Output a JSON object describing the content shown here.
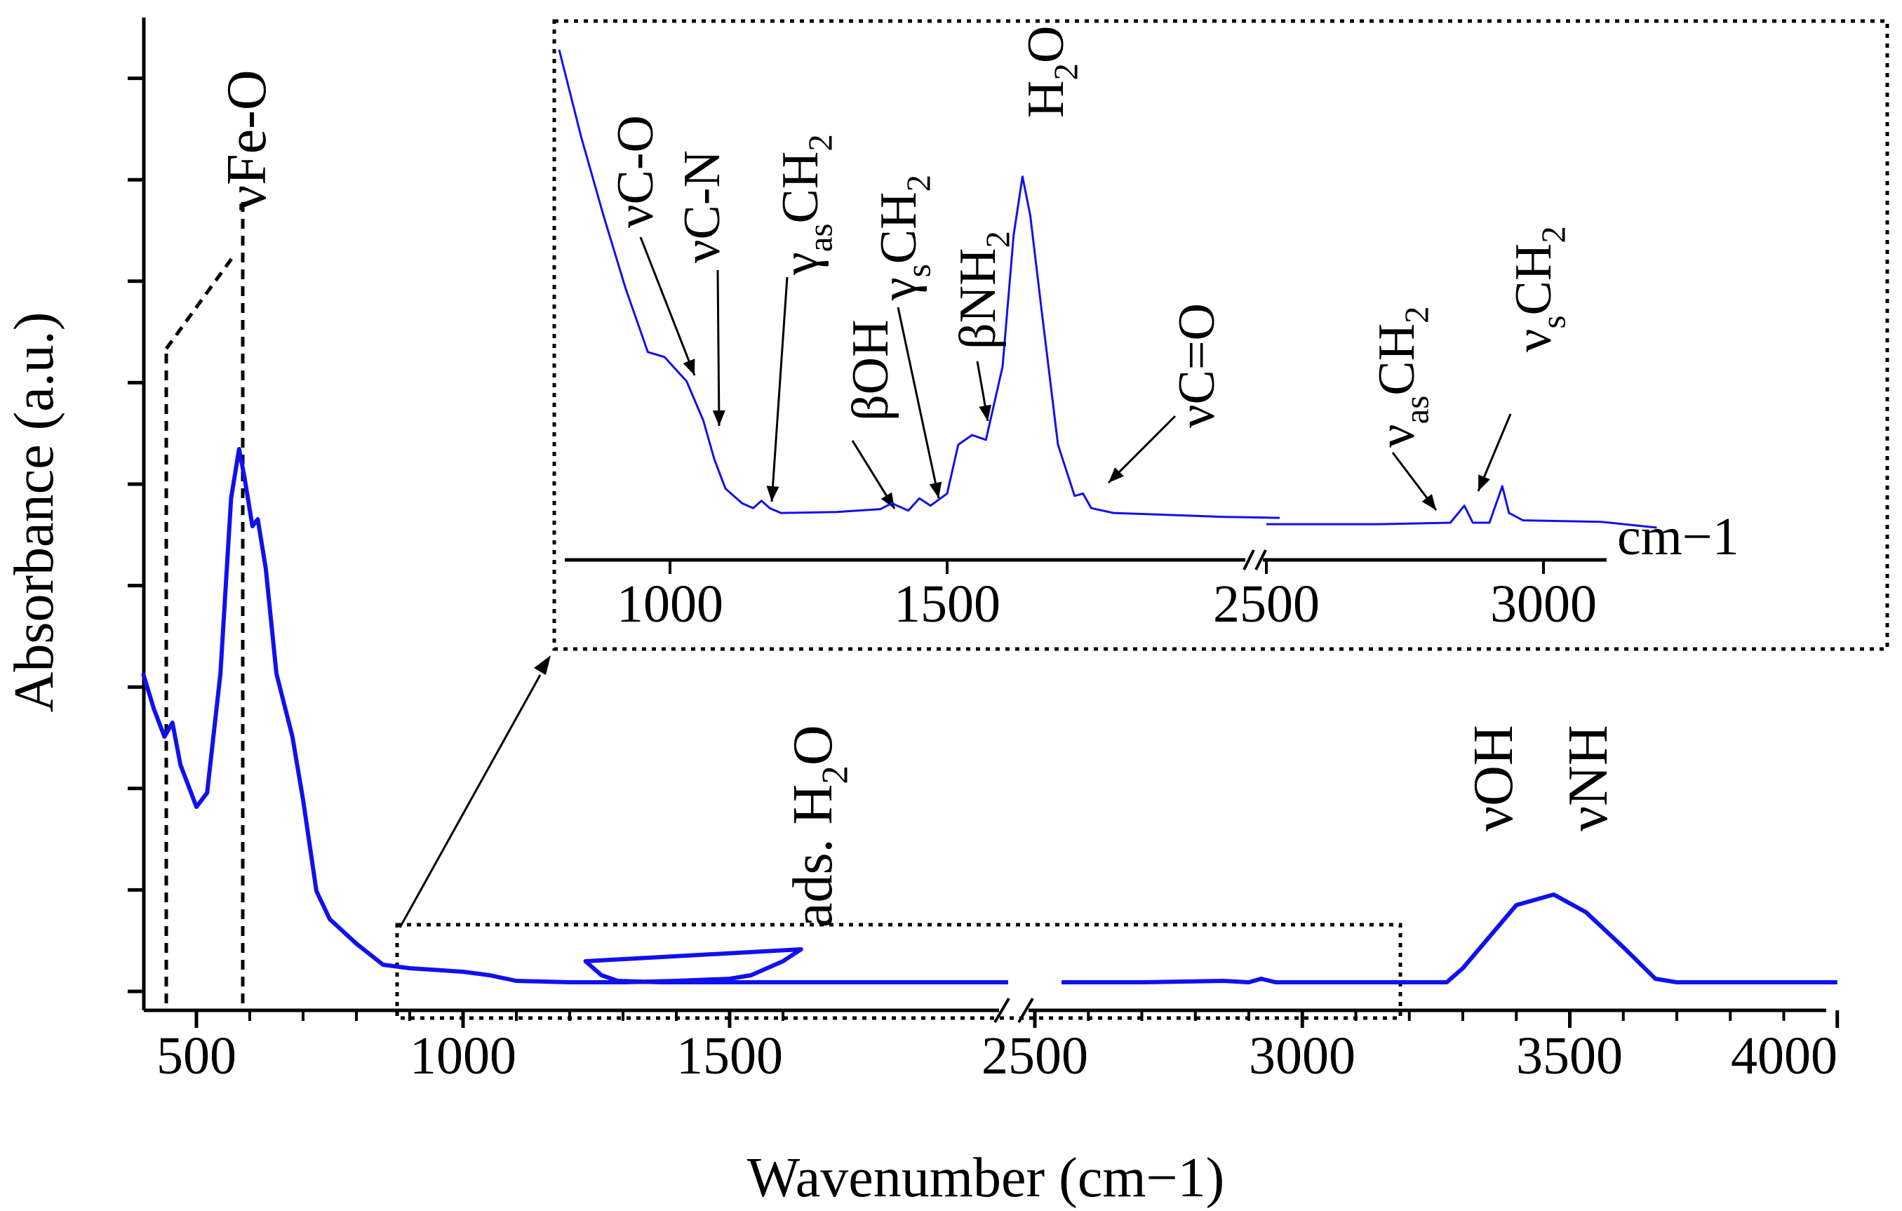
{
  "chart_data": {
    "type": "line",
    "title": "",
    "xlabel": "Wavenumber (cm−1)",
    "ylabel": "Absorbance (a.u.)",
    "x_axis": "broken axis: 400–1650 cm−1, break, 2450–4000 cm−1",
    "y_ticks_labeled": false,
    "series_color": "#1010ee",
    "ticks_main": [
      "500",
      "1000",
      "1500",
      "2500",
      "3000",
      "3500",
      "4000"
    ],
    "ticks_inset": [
      "1000",
      "1500",
      "2500",
      "3000"
    ],
    "inset_unit": "cm−1",
    "series": [
      {
        "points": [
          [
            400,
            0.45
          ],
          [
            420,
            0.4
          ],
          [
            440,
            0.36
          ],
          [
            455,
            0.38
          ],
          [
            470,
            0.32
          ],
          [
            500,
            0.26
          ],
          [
            520,
            0.28
          ],
          [
            545,
            0.45
          ],
          [
            565,
            0.7
          ],
          [
            580,
            0.77
          ],
          [
            590,
            0.73
          ],
          [
            605,
            0.66
          ],
          [
            615,
            0.67
          ],
          [
            630,
            0.6
          ],
          [
            650,
            0.45
          ],
          [
            680,
            0.36
          ],
          [
            700,
            0.27
          ],
          [
            725,
            0.14
          ],
          [
            750,
            0.1
          ],
          [
            800,
            0.065
          ],
          [
            850,
            0.035
          ],
          [
            900,
            0.03
          ],
          [
            1000,
            0.025
          ],
          [
            1050,
            0.02
          ],
          [
            1100,
            0.012
          ],
          [
            1200,
            0.01
          ],
          [
            1300,
            0.01
          ],
          [
            1400,
            0.012
          ],
          [
            1500,
            0.015
          ],
          [
            1540,
            0.02
          ],
          [
            1600,
            0.04
          ],
          [
            1634,
            0.057
          ],
          [
            1660,
            0.04
          ],
          [
            1690,
            0.02
          ],
          [
            1720,
            0.012
          ],
          [
            1800,
            0.01
          ],
          [
            2400,
            0.01
          ],
          [
            2450,
            0.01
          ]
        ]
      },
      {
        "points": [
          [
            2550,
            0.01
          ],
          [
            2700,
            0.01
          ],
          [
            2853,
            0.012
          ],
          [
            2900,
            0.01
          ],
          [
            2923,
            0.015
          ],
          [
            2950,
            0.01
          ],
          [
            3200,
            0.01
          ],
          [
            3270,
            0.01
          ],
          [
            3300,
            0.03
          ],
          [
            3400,
            0.12
          ],
          [
            3470,
            0.135
          ],
          [
            3530,
            0.11
          ],
          [
            3600,
            0.06
          ],
          [
            3660,
            0.015
          ],
          [
            3700,
            0.01
          ],
          [
            3800,
            0.01
          ],
          [
            4000,
            0.01
          ]
        ]
      }
    ],
    "inset_series": [
      {
        "points": [
          [
            800,
            0.98
          ],
          [
            840,
            0.8
          ],
          [
            880,
            0.64
          ],
          [
            920,
            0.49
          ],
          [
            960,
            0.36
          ],
          [
            990,
            0.35
          ],
          [
            1030,
            0.3
          ],
          [
            1060,
            0.22
          ],
          [
            1080,
            0.14
          ],
          [
            1100,
            0.08
          ],
          [
            1130,
            0.05
          ],
          [
            1150,
            0.04
          ],
          [
            1165,
            0.055
          ],
          [
            1180,
            0.04
          ],
          [
            1200,
            0.03
          ],
          [
            1300,
            0.032
          ],
          [
            1380,
            0.038
          ],
          [
            1400,
            0.05
          ],
          [
            1430,
            0.035
          ],
          [
            1450,
            0.06
          ],
          [
            1470,
            0.045
          ],
          [
            1500,
            0.07
          ],
          [
            1520,
            0.17
          ],
          [
            1545,
            0.19
          ],
          [
            1570,
            0.18
          ],
          [
            1600,
            0.33
          ],
          [
            1620,
            0.6
          ],
          [
            1636,
            0.72
          ],
          [
            1650,
            0.64
          ],
          [
            1670,
            0.45
          ],
          [
            1700,
            0.17
          ],
          [
            1730,
            0.065
          ],
          [
            1745,
            0.07
          ],
          [
            1760,
            0.04
          ],
          [
            1800,
            0.03
          ],
          [
            1900,
            0.026
          ],
          [
            2000,
            0.022
          ],
          [
            2100,
            0.02
          ]
        ]
      },
      {
        "points": [
          [
            2500,
            0.007
          ],
          [
            2700,
            0.007
          ],
          [
            2830,
            0.01
          ],
          [
            2855,
            0.045
          ],
          [
            2870,
            0.01
          ],
          [
            2900,
            0.01
          ],
          [
            2923,
            0.085
          ],
          [
            2935,
            0.03
          ],
          [
            2960,
            0.015
          ],
          [
            3100,
            0.012
          ],
          [
            3200,
            0.0
          ]
        ]
      }
    ],
    "annotations": [
      {
        "text": "νFe-O",
        "x": 581
      },
      {
        "text": "ads. H",
        "sub": "2",
        "rest": "O",
        "x": 1634
      },
      {
        "text": "νOH",
        "x": 3400
      },
      {
        "text": "νNH",
        "x": 3560
      },
      {
        "text": "νC-O",
        "x": 1020
      },
      {
        "text": "νC-N",
        "x": 1060
      },
      {
        "text": "γ",
        "sub": "as",
        "rest": "CH",
        "sub2": "2",
        "x": 1165
      },
      {
        "text": "βOH",
        "x": 1380
      },
      {
        "text": "γ",
        "sub": "s",
        "rest": "CH",
        "sub2": "2",
        "x": 1450
      },
      {
        "text": "βNH",
        "sub": "2",
        "x": 1545
      },
      {
        "text": "H",
        "sub": "2",
        "rest": "O",
        "x": 1636
      },
      {
        "text": "νC=O",
        "x": 1745
      },
      {
        "text": "ν",
        "sub": "as",
        "rest": "CH",
        "sub2": "2",
        "x": 2855
      },
      {
        "text": "ν",
        "sub": "s",
        "rest": "CH",
        "sub2": "2",
        "x": 2923
      }
    ]
  }
}
